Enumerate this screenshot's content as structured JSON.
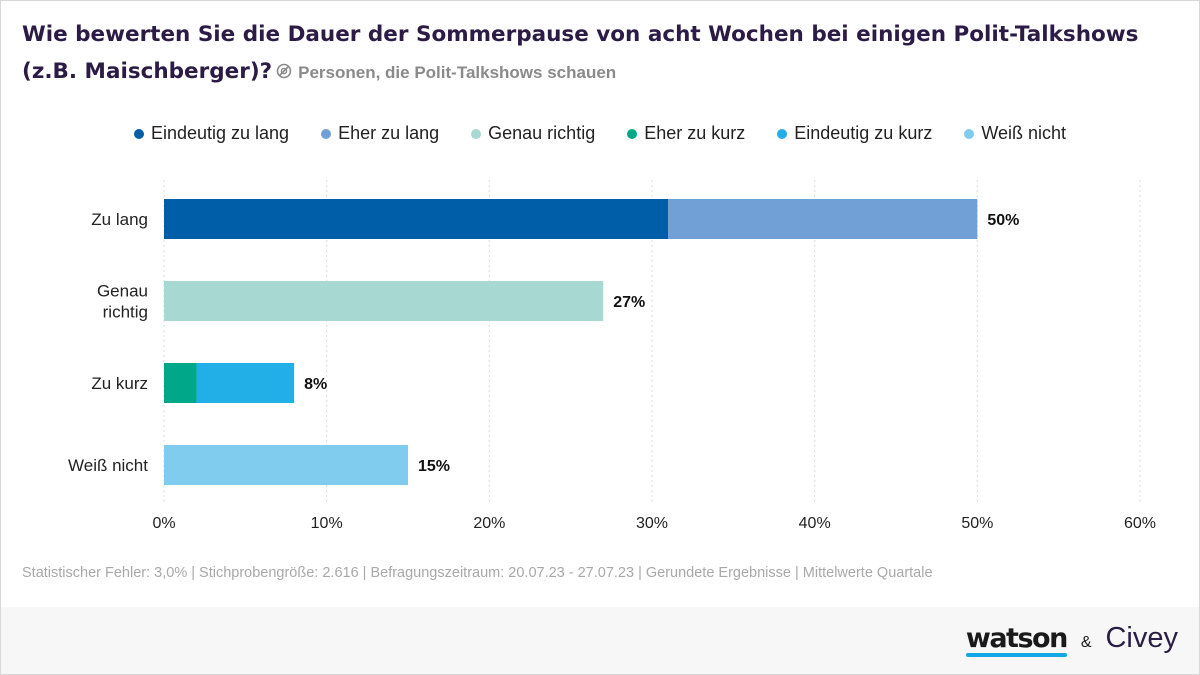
{
  "header": {
    "title": "Wie bewerten Sie die Dauer der Sommerpause von acht Wochen bei einigen Polit-Talkshows (z.B. Maischberger)?",
    "subtitle": "Personen, die Polit-Talkshows schauen",
    "info_icon": "eye-off-icon"
  },
  "legend": [
    {
      "label": "Eindeutig zu lang",
      "color": "#005ea8"
    },
    {
      "label": "Eher zu lang",
      "color": "#70a0d6"
    },
    {
      "label": "Genau richtig",
      "color": "#a8d8d2"
    },
    {
      "label": "Eher zu kurz",
      "color": "#00a88a"
    },
    {
      "label": "Eindeutig zu kurz",
      "color": "#22aee6"
    },
    {
      "label": "Weiß nicht",
      "color": "#80ccee"
    }
  ],
  "chart_data": {
    "type": "bar",
    "orientation": "horizontal",
    "stacked": true,
    "categories": [
      [
        "Zu lang"
      ],
      [
        "Genau",
        "richtig"
      ],
      [
        "Zu kurz"
      ],
      [
        "Weiß nicht"
      ]
    ],
    "series": [
      {
        "name": "Eindeutig zu lang",
        "color": "#005ea8",
        "values": [
          31,
          0,
          0,
          0
        ]
      },
      {
        "name": "Eher zu lang",
        "color": "#70a0d6",
        "values": [
          19,
          0,
          0,
          0
        ]
      },
      {
        "name": "Genau richtig",
        "color": "#a8d8d2",
        "values": [
          0,
          27,
          0,
          0
        ]
      },
      {
        "name": "Eher zu kurz",
        "color": "#00a88a",
        "values": [
          0,
          0,
          2,
          0
        ]
      },
      {
        "name": "Eindeutig zu kurz",
        "color": "#22aee6",
        "values": [
          0,
          0,
          6,
          0
        ]
      },
      {
        "name": "Weiß nicht",
        "color": "#80ccee",
        "values": [
          0,
          0,
          0,
          15
        ]
      }
    ],
    "totals": [
      50,
      27,
      8,
      15
    ],
    "total_labels": [
      "50%",
      "27%",
      "8%",
      "15%"
    ],
    "xlim": [
      0,
      60
    ],
    "xticks": [
      0,
      10,
      20,
      30,
      40,
      50,
      60
    ],
    "xtick_labels": [
      "0%",
      "10%",
      "20%",
      "30%",
      "40%",
      "50%",
      "60%"
    ],
    "grid": true,
    "legend_position": "top-center"
  },
  "footer": {
    "note": "Statistischer Fehler: 3,0% | Stichprobengröße: 2.616 | Befragungszeitraum: 20.07.23 - 27.07.23 | Gerundete Ergebnisse | Mittelwerte Quartale",
    "brand_watson": "watson",
    "brand_amp": "&",
    "brand_civey": "Civey"
  }
}
